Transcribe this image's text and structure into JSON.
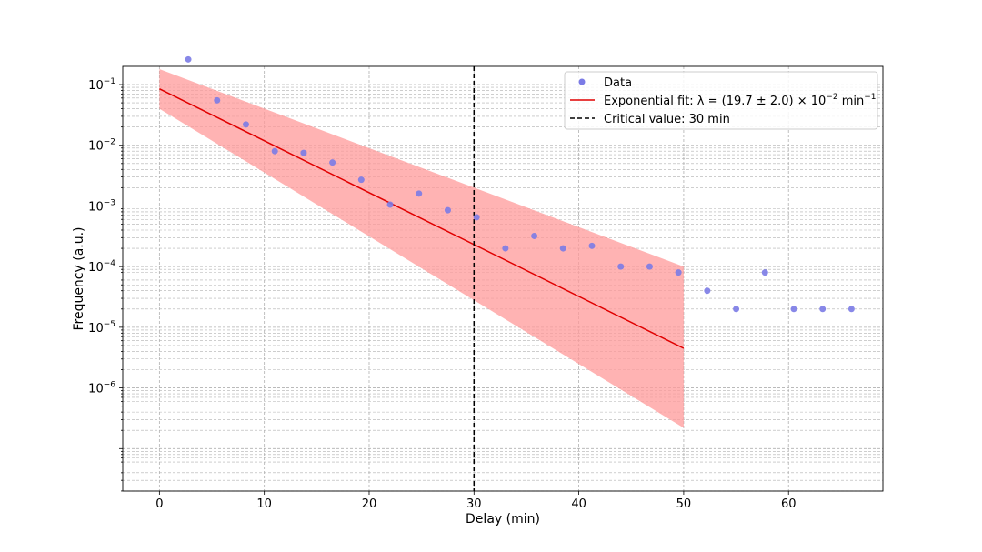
{
  "chart_data": {
    "type": "scatter",
    "xlabel": "Delay (min)",
    "ylabel": "Frequency (a.u.)",
    "xlim": [
      -3.5,
      69
    ],
    "ylim_log10": [
      -7.7,
      -0.7
    ],
    "y_scale": "log",
    "grid": true,
    "legend_position": "upper right",
    "x_ticks": [
      0,
      10,
      20,
      30,
      40,
      50,
      60
    ],
    "y_major_ticks_exp": [
      -6,
      -5,
      -4,
      -3,
      -2,
      -1
    ],
    "series": [
      {
        "name": "Data",
        "kind": "scatter",
        "color": "#7b7be6",
        "x": [
          2.75,
          5.5,
          8.25,
          11.0,
          13.75,
          16.5,
          19.25,
          22.0,
          24.75,
          27.5,
          30.25,
          33.0,
          35.75,
          38.5,
          41.25,
          44.0,
          46.75,
          49.5,
          52.25,
          55.0,
          57.75,
          60.5,
          63.25,
          66.0
        ],
        "y": [
          0.26,
          0.055,
          0.022,
          0.008,
          0.0075,
          0.0052,
          0.0027,
          0.00105,
          0.0016,
          0.00085,
          0.00065,
          0.0002,
          0.00032,
          0.0002,
          0.00022,
          0.0001,
          0.0001,
          8e-05,
          4e-05,
          2e-05,
          8e-05,
          2e-05,
          2e-05,
          2e-05
        ]
      },
      {
        "name": "Exponential fit: λ = (19.7 ± 2.0) × 10⁻² min⁻¹",
        "kind": "line",
        "color": "#e00000",
        "x": [
          0,
          50
        ],
        "y": [
          0.085,
          4.5e-06
        ]
      },
      {
        "name": "Critical value: 30 min",
        "kind": "vline",
        "color": "#000000",
        "x": 30
      }
    ],
    "confidence_band": {
      "color": "#ff9a9a",
      "x": [
        0,
        50
      ],
      "upper": [
        0.18,
        0.0001
      ],
      "lower": [
        0.04,
        2.2e-07
      ]
    }
  },
  "legend": {
    "data_label": "Data",
    "fit_prefix": "Exponential fit: λ = (19.7 ± 2.0) × 10",
    "fit_exp": "−2",
    "fit_unit": " min",
    "fit_unit_exp": "−1",
    "critical_label": "Critical value: 30 min"
  }
}
